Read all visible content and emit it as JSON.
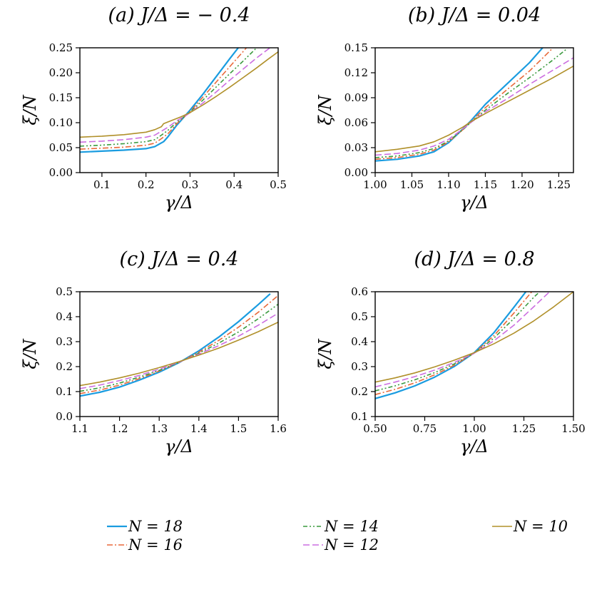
{
  "series_styles": {
    "N18": {
      "label": "N = 18",
      "color": "#1a9ce0",
      "dash": "",
      "width": 2.2
    },
    "N16": {
      "label": "N = 16",
      "color": "#e8693a",
      "dash": "8 3 2 3",
      "width": 1.6
    },
    "N14": {
      "label": "N = 14",
      "color": "#3a9a3e",
      "dash": "6 3 2 3 2 3",
      "width": 1.6
    },
    "N12": {
      "label": "N = 12",
      "color": "#cc6ee0",
      "dash": "9 4",
      "width": 1.6
    },
    "N10": {
      "label": "N = 10",
      "color": "#b0902a",
      "dash": "",
      "width": 1.6
    }
  },
  "legend": {
    "entries": [
      "N = 18",
      "N = 14",
      "N = 10",
      "N = 16",
      "N = 12"
    ]
  },
  "chart_data": [
    {
      "type": "line",
      "title": "(a)  J/Δ = − 0.4",
      "xlabel": "γ/Δ",
      "ylabel": "ξ/N",
      "xlim": [
        0.05,
        0.5
      ],
      "ylim": [
        0,
        0.25
      ],
      "xticks": [
        0.1,
        0.2,
        0.3,
        0.4,
        0.5
      ],
      "xtick_labels": [
        "0.1",
        "0.2",
        "0.3",
        "0.4",
        "0.5"
      ],
      "yticks": [
        0,
        0.05,
        0.1,
        0.15,
        0.2,
        0.25
      ],
      "ytick_labels": [
        "0.00",
        "0.05",
        "0.10",
        "0.15",
        "0.20",
        "0.25"
      ],
      "series": [
        {
          "key": "N18",
          "name": "N = 18",
          "x": [
            0.05,
            0.1,
            0.15,
            0.2,
            0.22,
            0.24,
            0.25,
            0.27,
            0.29,
            0.3,
            0.33,
            0.36,
            0.39,
            0.42
          ],
          "y": [
            0.041,
            0.043,
            0.045,
            0.048,
            0.052,
            0.062,
            0.072,
            0.095,
            0.115,
            0.125,
            0.158,
            0.193,
            0.228,
            0.262
          ]
        },
        {
          "key": "N16",
          "name": "N = 16",
          "x": [
            0.05,
            0.1,
            0.15,
            0.2,
            0.22,
            0.235,
            0.25,
            0.27,
            0.29,
            0.3,
            0.33,
            0.36,
            0.39,
            0.42,
            0.44
          ],
          "y": [
            0.047,
            0.049,
            0.051,
            0.055,
            0.059,
            0.068,
            0.078,
            0.098,
            0.114,
            0.122,
            0.152,
            0.182,
            0.212,
            0.242,
            0.262
          ]
        },
        {
          "key": "N14",
          "name": "N = 14",
          "x": [
            0.05,
            0.1,
            0.15,
            0.2,
            0.22,
            0.235,
            0.25,
            0.27,
            0.29,
            0.3,
            0.33,
            0.36,
            0.39,
            0.42,
            0.45,
            0.47
          ],
          "y": [
            0.053,
            0.055,
            0.058,
            0.062,
            0.066,
            0.075,
            0.085,
            0.101,
            0.114,
            0.121,
            0.146,
            0.172,
            0.198,
            0.223,
            0.249,
            0.265
          ]
        },
        {
          "key": "N12",
          "name": "N = 12",
          "x": [
            0.05,
            0.1,
            0.15,
            0.2,
            0.22,
            0.235,
            0.25,
            0.27,
            0.29,
            0.3,
            0.33,
            0.36,
            0.39,
            0.42,
            0.45,
            0.48,
            0.5
          ],
          "y": [
            0.061,
            0.063,
            0.066,
            0.071,
            0.075,
            0.083,
            0.091,
            0.104,
            0.114,
            0.12,
            0.14,
            0.162,
            0.185,
            0.207,
            0.229,
            0.249,
            0.262
          ]
        },
        {
          "key": "N10",
          "name": "N = 10",
          "x": [
            0.05,
            0.1,
            0.15,
            0.2,
            0.22,
            0.235,
            0.24,
            0.26,
            0.28,
            0.3,
            0.33,
            0.36,
            0.39,
            0.42,
            0.45,
            0.48,
            0.5
          ],
          "y": [
            0.071,
            0.073,
            0.076,
            0.081,
            0.086,
            0.092,
            0.098,
            0.105,
            0.112,
            0.12,
            0.136,
            0.153,
            0.171,
            0.19,
            0.209,
            0.229,
            0.242
          ]
        }
      ]
    },
    {
      "type": "line",
      "title": "(b)  J/Δ = 0.04",
      "xlabel": "γ/Δ",
      "ylabel": "ξ/N",
      "xlim": [
        1.0,
        1.27
      ],
      "ylim": [
        0,
        0.15
      ],
      "xticks": [
        1.0,
        1.05,
        1.1,
        1.15,
        1.2,
        1.25
      ],
      "xtick_labels": [
        "1.00",
        "1.05",
        "1.10",
        "1.15",
        "1.20",
        "1.25"
      ],
      "yticks": [
        0,
        0.03,
        0.06,
        0.09,
        0.12,
        0.15
      ],
      "ytick_labels": [
        "0.00",
        "0.03",
        "0.06",
        "0.09",
        "0.12",
        "0.15"
      ],
      "series": [
        {
          "key": "N18",
          "name": "N = 18",
          "x": [
            1.0,
            1.03,
            1.06,
            1.08,
            1.1,
            1.12,
            1.13,
            1.15,
            1.18,
            1.21,
            1.23
          ],
          "y": [
            0.014,
            0.016,
            0.02,
            0.025,
            0.036,
            0.053,
            0.062,
            0.082,
            0.107,
            0.132,
            0.152
          ]
        },
        {
          "key": "N16",
          "name": "N = 16",
          "x": [
            1.0,
            1.03,
            1.06,
            1.08,
            1.1,
            1.12,
            1.13,
            1.15,
            1.18,
            1.21,
            1.24
          ],
          "y": [
            0.016,
            0.018,
            0.022,
            0.027,
            0.037,
            0.052,
            0.061,
            0.078,
            0.1,
            0.122,
            0.148
          ]
        },
        {
          "key": "N14",
          "name": "N = 14",
          "x": [
            1.0,
            1.03,
            1.06,
            1.08,
            1.1,
            1.12,
            1.13,
            1.15,
            1.18,
            1.21,
            1.24,
            1.26
          ],
          "y": [
            0.018,
            0.02,
            0.024,
            0.029,
            0.038,
            0.052,
            0.06,
            0.075,
            0.095,
            0.114,
            0.134,
            0.148
          ]
        },
        {
          "key": "N12",
          "name": "N = 12",
          "x": [
            1.0,
            1.03,
            1.06,
            1.08,
            1.1,
            1.12,
            1.13,
            1.15,
            1.18,
            1.21,
            1.24,
            1.27
          ],
          "y": [
            0.021,
            0.023,
            0.027,
            0.032,
            0.04,
            0.053,
            0.06,
            0.073,
            0.089,
            0.106,
            0.122,
            0.138
          ]
        },
        {
          "key": "N10",
          "name": "N = 10",
          "x": [
            1.0,
            1.03,
            1.06,
            1.08,
            1.1,
            1.12,
            1.13,
            1.15,
            1.18,
            1.21,
            1.24,
            1.27
          ],
          "y": [
            0.025,
            0.028,
            0.032,
            0.037,
            0.045,
            0.055,
            0.061,
            0.071,
            0.085,
            0.099,
            0.113,
            0.128
          ]
        }
      ]
    },
    {
      "type": "line",
      "title": "(c)  J/Δ = 0.4",
      "xlabel": "γ/Δ",
      "ylabel": "ξ/N",
      "xlim": [
        1.1,
        1.6
      ],
      "ylim": [
        0,
        0.5
      ],
      "xticks": [
        1.1,
        1.2,
        1.3,
        1.4,
        1.5,
        1.6
      ],
      "xtick_labels": [
        "1.1",
        "1.2",
        "1.3",
        "1.4",
        "1.5",
        "1.6"
      ],
      "yticks": [
        0,
        0.1,
        0.2,
        0.3,
        0.4,
        0.5
      ],
      "ytick_labels": [
        "0.0",
        "0.1",
        "0.2",
        "0.3",
        "0.4",
        "0.5"
      ],
      "series": [
        {
          "key": "N18",
          "name": "N = 18",
          "x": [
            1.1,
            1.15,
            1.2,
            1.25,
            1.3,
            1.35,
            1.4,
            1.45,
            1.5,
            1.55,
            1.58
          ],
          "y": [
            0.082,
            0.097,
            0.118,
            0.146,
            0.178,
            0.216,
            0.263,
            0.318,
            0.38,
            0.449,
            0.492
          ]
        },
        {
          "key": "N16",
          "name": "N = 16",
          "x": [
            1.1,
            1.15,
            1.2,
            1.25,
            1.3,
            1.35,
            1.4,
            1.45,
            1.5,
            1.55,
            1.6
          ],
          "y": [
            0.092,
            0.106,
            0.126,
            0.152,
            0.182,
            0.217,
            0.258,
            0.305,
            0.358,
            0.418,
            0.485
          ]
        },
        {
          "key": "N14",
          "name": "N = 14",
          "x": [
            1.1,
            1.15,
            1.2,
            1.25,
            1.3,
            1.35,
            1.4,
            1.45,
            1.5,
            1.55,
            1.6
          ],
          "y": [
            0.101,
            0.115,
            0.134,
            0.158,
            0.185,
            0.217,
            0.254,
            0.294,
            0.339,
            0.392,
            0.45
          ]
        },
        {
          "key": "N12",
          "name": "N = 12",
          "x": [
            1.1,
            1.15,
            1.2,
            1.25,
            1.3,
            1.35,
            1.4,
            1.45,
            1.5,
            1.55,
            1.6
          ],
          "y": [
            0.112,
            0.126,
            0.144,
            0.165,
            0.19,
            0.218,
            0.25,
            0.284,
            0.322,
            0.366,
            0.414
          ]
        },
        {
          "key": "N10",
          "name": "N = 10",
          "x": [
            1.1,
            1.15,
            1.2,
            1.25,
            1.3,
            1.35,
            1.4,
            1.45,
            1.5,
            1.55,
            1.6
          ],
          "y": [
            0.124,
            0.138,
            0.155,
            0.174,
            0.196,
            0.22,
            0.246,
            0.274,
            0.306,
            0.34,
            0.378
          ]
        }
      ]
    },
    {
      "type": "line",
      "title": "(d)  J/Δ = 0.8",
      "xlabel": "γ/Δ",
      "ylabel": "ξ/N",
      "xlim": [
        0.5,
        1.5
      ],
      "ylim": [
        0.1,
        0.6
      ],
      "xticks": [
        0.5,
        0.75,
        1.0,
        1.25,
        1.5
      ],
      "xtick_labels": [
        "0.50",
        "0.75",
        "1.00",
        "1.25",
        "1.50"
      ],
      "yticks": [
        0.1,
        0.2,
        0.3,
        0.4,
        0.5,
        0.6
      ],
      "ytick_labels": [
        "0.1",
        "0.2",
        "0.3",
        "0.4",
        "0.5",
        "0.6"
      ],
      "series": [
        {
          "key": "N18",
          "name": "N = 18",
          "x": [
            0.5,
            0.6,
            0.7,
            0.8,
            0.9,
            1.0,
            1.1,
            1.2,
            1.26
          ],
          "y": [
            0.172,
            0.195,
            0.223,
            0.258,
            0.301,
            0.356,
            0.437,
            0.538,
            0.6
          ]
        },
        {
          "key": "N16",
          "name": "N = 16",
          "x": [
            0.5,
            0.6,
            0.7,
            0.8,
            0.9,
            1.0,
            1.1,
            1.2,
            1.29
          ],
          "y": [
            0.188,
            0.209,
            0.235,
            0.267,
            0.306,
            0.355,
            0.425,
            0.515,
            0.6
          ]
        },
        {
          "key": "N14",
          "name": "N = 14",
          "x": [
            0.5,
            0.6,
            0.7,
            0.8,
            0.9,
            1.0,
            1.1,
            1.2,
            1.3,
            1.33
          ],
          "y": [
            0.203,
            0.223,
            0.247,
            0.276,
            0.311,
            0.354,
            0.415,
            0.493,
            0.578,
            0.6
          ]
        },
        {
          "key": "N12",
          "name": "N = 12",
          "x": [
            0.5,
            0.6,
            0.7,
            0.8,
            0.9,
            1.0,
            1.1,
            1.2,
            1.3,
            1.38
          ],
          "y": [
            0.219,
            0.238,
            0.26,
            0.286,
            0.317,
            0.354,
            0.404,
            0.466,
            0.54,
            0.6
          ]
        },
        {
          "key": "N10",
          "name": "N = 10",
          "x": [
            0.5,
            0.6,
            0.7,
            0.8,
            0.9,
            1.0,
            1.1,
            1.2,
            1.3,
            1.4,
            1.5
          ],
          "y": [
            0.238,
            0.255,
            0.275,
            0.299,
            0.326,
            0.356,
            0.392,
            0.434,
            0.483,
            0.539,
            0.6
          ]
        }
      ]
    }
  ]
}
